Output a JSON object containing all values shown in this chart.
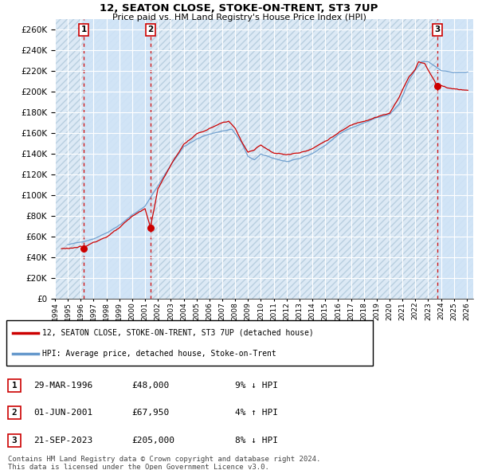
{
  "title": "12, SEATON CLOSE, STOKE-ON-TRENT, ST3 7UP",
  "subtitle": "Price paid vs. HM Land Registry's House Price Index (HPI)",
  "ylim": [
    0,
    270000
  ],
  "yticks": [
    0,
    20000,
    40000,
    60000,
    80000,
    100000,
    120000,
    140000,
    160000,
    180000,
    200000,
    220000,
    240000,
    260000
  ],
  "xlim_start": 1994.0,
  "xlim_end": 2026.5,
  "plot_bg_color": "#dce9f5",
  "shade_color": "#d0e4f7",
  "hatch_color": "#b8cfe0",
  "grid_color": "#ffffff",
  "sale_dates": [
    1996.24,
    2001.42,
    2023.72
  ],
  "sale_prices": [
    48000,
    67950,
    205000
  ],
  "sale_labels": [
    "1",
    "2",
    "3"
  ],
  "legend_label_red": "12, SEATON CLOSE, STOKE-ON-TRENT, ST3 7UP (detached house)",
  "legend_label_blue": "HPI: Average price, detached house, Stoke-on-Trent",
  "table_data": [
    [
      "1",
      "29-MAR-1996",
      "£48,000",
      "9% ↓ HPI"
    ],
    [
      "2",
      "01-JUN-2001",
      "£67,950",
      "4% ↑ HPI"
    ],
    [
      "3",
      "21-SEP-2023",
      "£205,000",
      "8% ↓ HPI"
    ]
  ],
  "footer": "Contains HM Land Registry data © Crown copyright and database right 2024.\nThis data is licensed under the Open Government Licence v3.0.",
  "red_color": "#cc0000",
  "blue_color": "#6699cc"
}
